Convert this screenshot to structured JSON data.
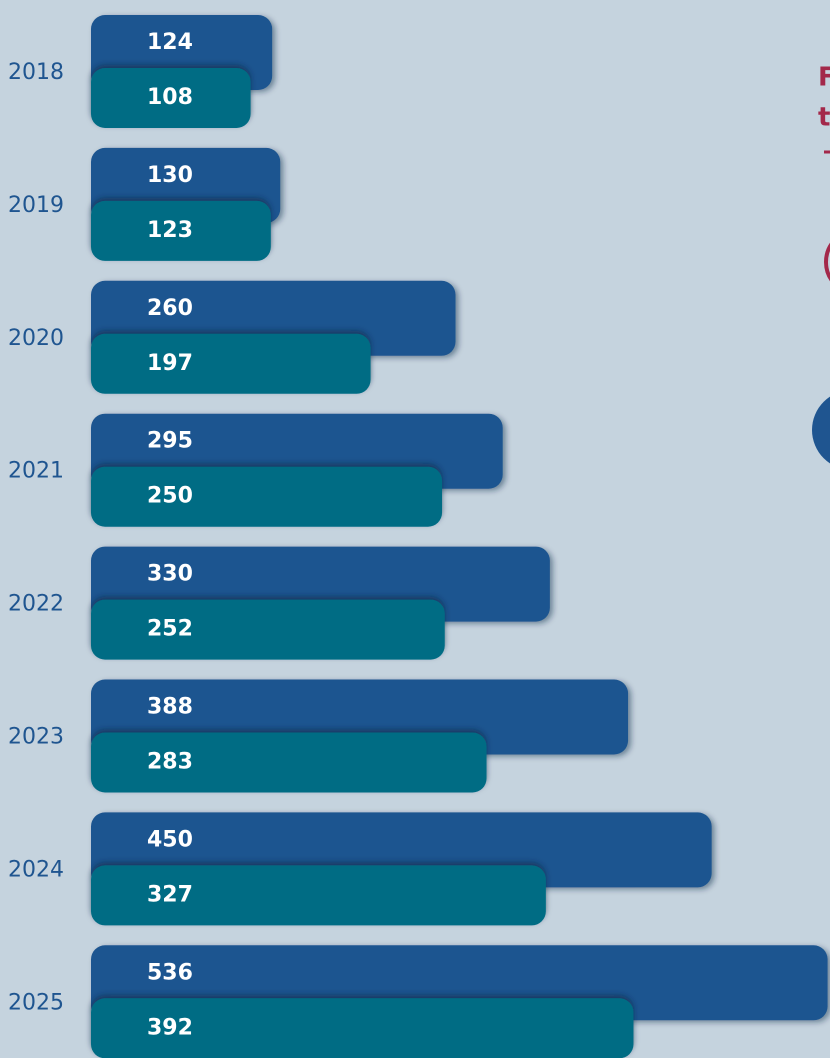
{
  "chart_data": {
    "type": "bar",
    "orientation": "horizontal",
    "categories": [
      "2018",
      "2019",
      "2020",
      "2021",
      "2022",
      "2023",
      "2024",
      "2025"
    ],
    "series": [
      {
        "color": "#1f5590",
        "values": [
          124,
          130,
          260,
          295,
          330,
          388,
          450,
          536
        ]
      },
      {
        "color": "#006c84",
        "values": [
          108,
          123,
          197,
          250,
          252,
          283,
          327,
          392
        ]
      }
    ],
    "xlim": [
      0,
      540
    ],
    "annotations": [
      "F",
      "t"
    ]
  }
}
